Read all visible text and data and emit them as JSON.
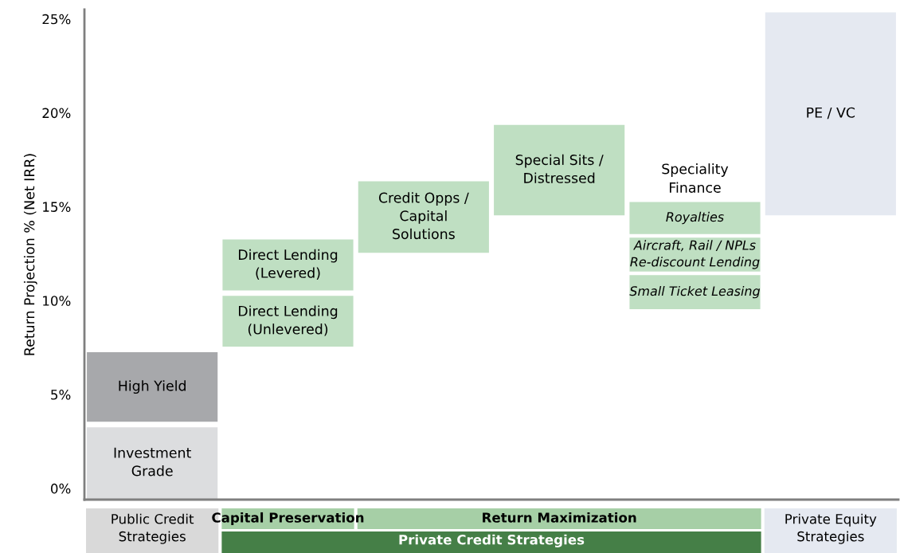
{
  "chart_data": {
    "type": "bar",
    "ylabel": "Return Projection % (Net IRR)",
    "categories": [
      null,
      null,
      null,
      null,
      null,
      null
    ],
    "ylim": [
      -0.6,
      25.5
    ],
    "yticks": [
      {
        "value": 0,
        "label": "0%"
      },
      {
        "value": 5,
        "label": "5%"
      },
      {
        "value": 10,
        "label": "10%"
      },
      {
        "value": 15,
        "label": "15%"
      },
      {
        "value": 20,
        "label": "20%"
      },
      {
        "value": 25,
        "label": "25%"
      }
    ],
    "grid": false,
    "legend": false,
    "series": [
      {
        "base": [
          -0.6,
          7.5,
          12.5,
          14.5,
          9.5,
          14.5
        ],
        "values": [
          3.9,
          2.8,
          3.9,
          4.9,
          1.9,
          10.9
        ],
        "colors": [
          "#dcdddf",
          "#bfdfc2",
          "#bfdfc2",
          "#bfdfc2",
          "#bfdfc2",
          "#e5e9f1"
        ],
        "value_labels": [
          "Investment\nGrade",
          "Direct Lending\n(Unlevered)",
          "Credit Opps /\nCapital\nSolutions",
          "Special Sits /\nDistressed",
          "Small Ticket Leasing",
          "PE / VC"
        ]
      },
      {
        "base": [
          3.5,
          10.5,
          null,
          null,
          11.5,
          null
        ],
        "values": [
          3.8,
          2.8,
          null,
          null,
          1.9,
          null
        ],
        "colors": [
          "#a7a8ab",
          "#bfdfc2",
          null,
          null,
          "#bfdfc2",
          null
        ],
        "value_labels": [
          "High Yield",
          "Direct Lending\n(Levered)",
          null,
          null,
          "Aircraft, Rail / NPLs\nRe-discount Lending",
          null
        ]
      },
      {
        "base": [
          null,
          null,
          null,
          null,
          13.5,
          null
        ],
        "values": [
          null,
          null,
          null,
          null,
          1.8,
          null
        ],
        "colors": [
          null,
          null,
          null,
          null,
          "#bfdfc2",
          null
        ],
        "value_labels": [
          null,
          null,
          null,
          null,
          "Royalties",
          null
        ]
      }
    ],
    "annotations": [
      "Speciality\nFinance",
      "Public Credit\nStrategies",
      "Capital Preservation",
      "Return Maximization",
      "Private Credit Strategies",
      "Private Equity\nStrategies"
    ]
  }
}
